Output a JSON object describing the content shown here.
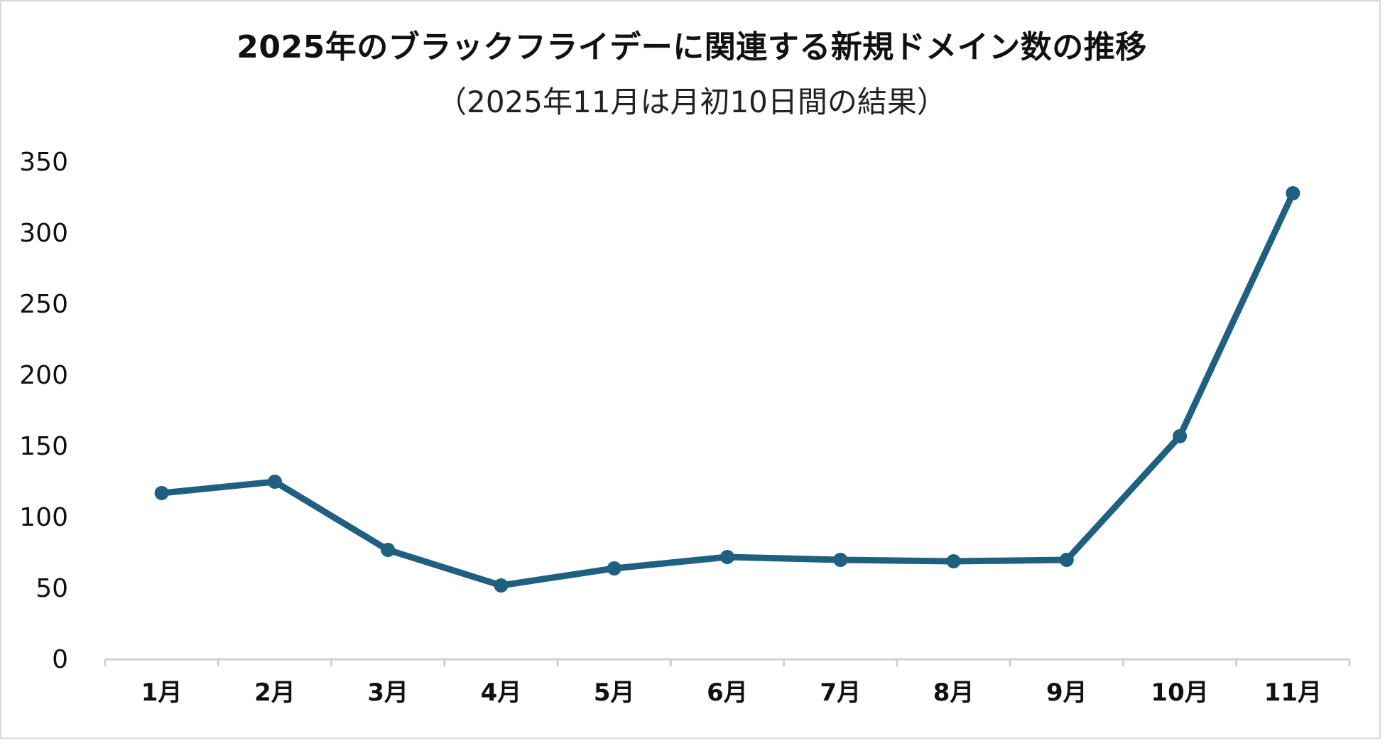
{
  "chart_data": {
    "type": "line",
    "title": "2025年のブラックフライデーに関連する新規ドメイン数の推移",
    "subtitle": "（2025年11月は月初10日間の結果）",
    "xlabel": "",
    "ylabel": "",
    "categories": [
      "1月",
      "2月",
      "3月",
      "4月",
      "5月",
      "6月",
      "7月",
      "8月",
      "9月",
      "10月",
      "11月"
    ],
    "series": [
      {
        "values": [
          117,
          125,
          77,
          52,
          64,
          72,
          70,
          69,
          70,
          157,
          328
        ]
      }
    ],
    "ylim": [
      0,
      350
    ],
    "yticks": [
      0,
      50,
      100,
      150,
      200,
      250,
      300,
      350
    ],
    "grid": false,
    "legend": "none",
    "colors": {
      "line": "#1f5f7f",
      "axis": "#d0d0d0"
    }
  }
}
